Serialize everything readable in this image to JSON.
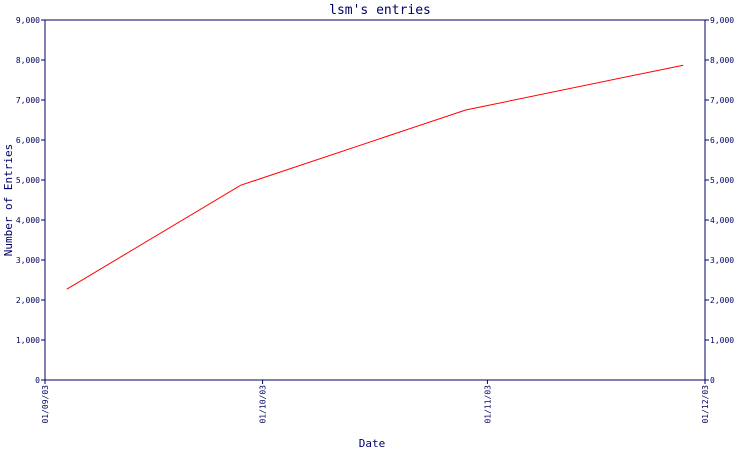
{
  "chart_data": {
    "type": "line",
    "title": "lsm's entries",
    "xlabel": "Date",
    "ylabel": "Number of Entries",
    "x_ticks": [
      "01/09/03",
      "01/10/03",
      "01/11/03",
      "01/12/03"
    ],
    "x_range": [
      "01/09/03",
      "01/12/03"
    ],
    "ylim": [
      0,
      9000
    ],
    "y_ticks": [
      "0",
      "1,000",
      "2,000",
      "3,000",
      "4,000",
      "5,000",
      "6,000",
      "7,000",
      "8,000",
      "9,000"
    ],
    "y_ticks_right": true,
    "grid": false,
    "series": [
      {
        "color": "#ff0000",
        "points": [
          {
            "x": "04/09/03",
            "y": 2270
          },
          {
            "x": "28/09/03",
            "y": 4870
          },
          {
            "x": "29/10/03",
            "y": 6750
          },
          {
            "x": "28/11/03",
            "y": 7870
          }
        ]
      }
    ],
    "colors": {
      "axis": "#000066",
      "line": "#ff0000",
      "background": "#ffffff"
    }
  }
}
